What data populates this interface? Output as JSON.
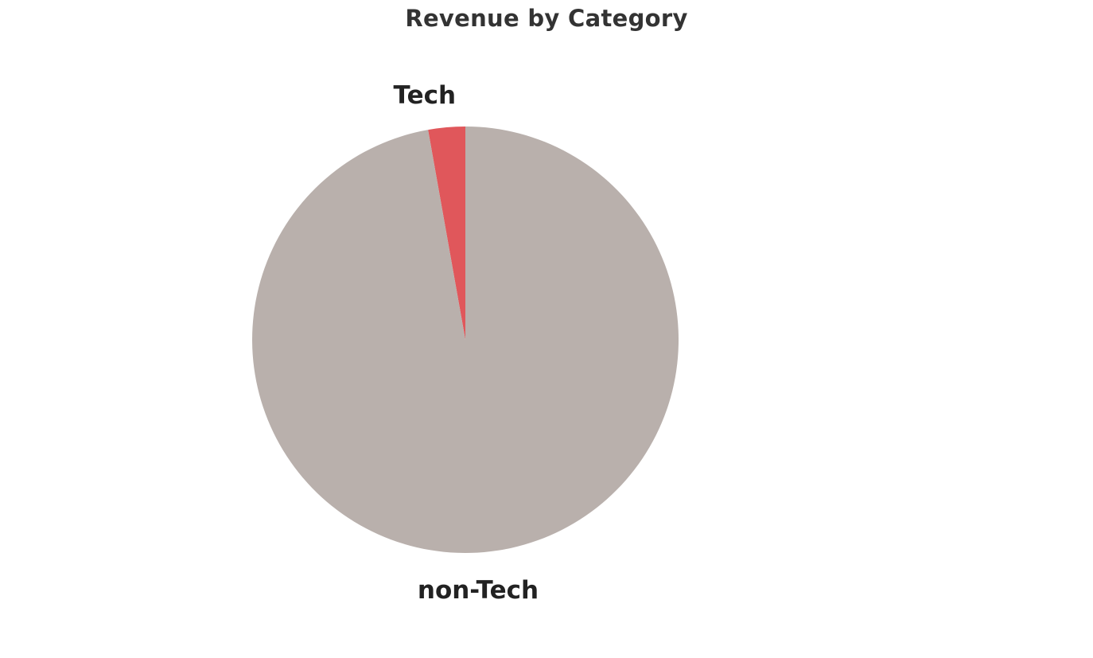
{
  "chart_data": {
    "type": "pie",
    "title": "Revenue by Category",
    "slices": [
      {
        "label": "Tech",
        "value": 2.8,
        "color": "#e0575b"
      },
      {
        "label": "non-Tech",
        "value": 97.2,
        "color": "#b9b0ac"
      }
    ],
    "start_angle_deg": 0,
    "direction": "counterclockwise",
    "legend": "none",
    "labels": "outside"
  }
}
